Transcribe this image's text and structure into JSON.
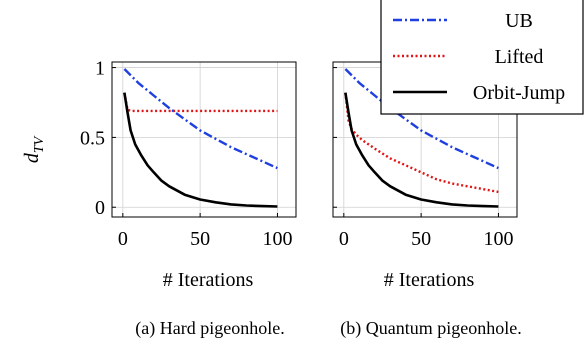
{
  "legend": [
    {
      "name": "UB",
      "color": "#1f3fe0",
      "dash": "dashdot"
    },
    {
      "name": "Lifted",
      "color": "#e01414",
      "dash": "dotted"
    },
    {
      "name": "Orbit-Jump",
      "color": "#000000",
      "dash": "solid"
    }
  ],
  "shared": {
    "ylabel_main": "d",
    "ylabel_sub": "TV",
    "xlabel": "# Iterations"
  },
  "chart_data": [
    {
      "type": "line",
      "caption": "(a) Hard pigeonhole.",
      "xlabel": "# Iterations",
      "ylabel": "d_TV",
      "xlim": [
        0,
        100
      ],
      "ylim": [
        0,
        1
      ],
      "xticks": [
        "0",
        "50",
        "100"
      ],
      "yticks": [
        "0",
        "0.5",
        "1"
      ],
      "grid": true,
      "series": [
        {
          "name": "UB",
          "x": [
            1,
            10,
            20,
            30,
            40,
            50,
            60,
            70,
            80,
            90,
            100
          ],
          "y": [
            0.99,
            0.89,
            0.8,
            0.71,
            0.63,
            0.55,
            0.49,
            0.43,
            0.38,
            0.33,
            0.28
          ]
        },
        {
          "name": "Lifted",
          "x": [
            1,
            3,
            5,
            10,
            20,
            40,
            60,
            80,
            100
          ],
          "y": [
            0.82,
            0.7,
            0.69,
            0.69,
            0.69,
            0.69,
            0.69,
            0.69,
            0.69
          ]
        },
        {
          "name": "Orbit-Jump",
          "x": [
            1,
            3,
            5,
            8,
            12,
            16,
            20,
            25,
            30,
            40,
            50,
            60,
            70,
            80,
            90,
            100
          ],
          "y": [
            0.82,
            0.68,
            0.55,
            0.45,
            0.37,
            0.3,
            0.25,
            0.19,
            0.15,
            0.09,
            0.055,
            0.035,
            0.02,
            0.012,
            0.008,
            0.005
          ]
        }
      ]
    },
    {
      "type": "line",
      "caption": "(b) Quantum pigeonhole.",
      "xlabel": "# Iterations",
      "ylabel": "d_TV",
      "xlim": [
        0,
        100
      ],
      "ylim": [
        0,
        1
      ],
      "xticks": [
        "0",
        "50",
        "100"
      ],
      "yticks": [
        "0",
        "0.5",
        "1"
      ],
      "grid": true,
      "series": [
        {
          "name": "UB",
          "x": [
            1,
            10,
            20,
            30,
            40,
            50,
            60,
            70,
            80,
            90,
            100
          ],
          "y": [
            0.99,
            0.89,
            0.8,
            0.71,
            0.63,
            0.55,
            0.49,
            0.43,
            0.38,
            0.33,
            0.28
          ]
        },
        {
          "name": "Lifted",
          "x": [
            1,
            3,
            5,
            8,
            12,
            20,
            30,
            40,
            50,
            60,
            70,
            80,
            90,
            100
          ],
          "y": [
            0.82,
            0.62,
            0.56,
            0.52,
            0.48,
            0.42,
            0.35,
            0.3,
            0.25,
            0.2,
            0.17,
            0.15,
            0.13,
            0.11
          ]
        },
        {
          "name": "Orbit-Jump",
          "x": [
            1,
            3,
            5,
            8,
            12,
            16,
            20,
            25,
            30,
            40,
            50,
            60,
            70,
            80,
            90,
            100
          ],
          "y": [
            0.82,
            0.68,
            0.55,
            0.45,
            0.37,
            0.3,
            0.25,
            0.19,
            0.15,
            0.09,
            0.055,
            0.035,
            0.02,
            0.012,
            0.008,
            0.005
          ]
        }
      ]
    }
  ]
}
